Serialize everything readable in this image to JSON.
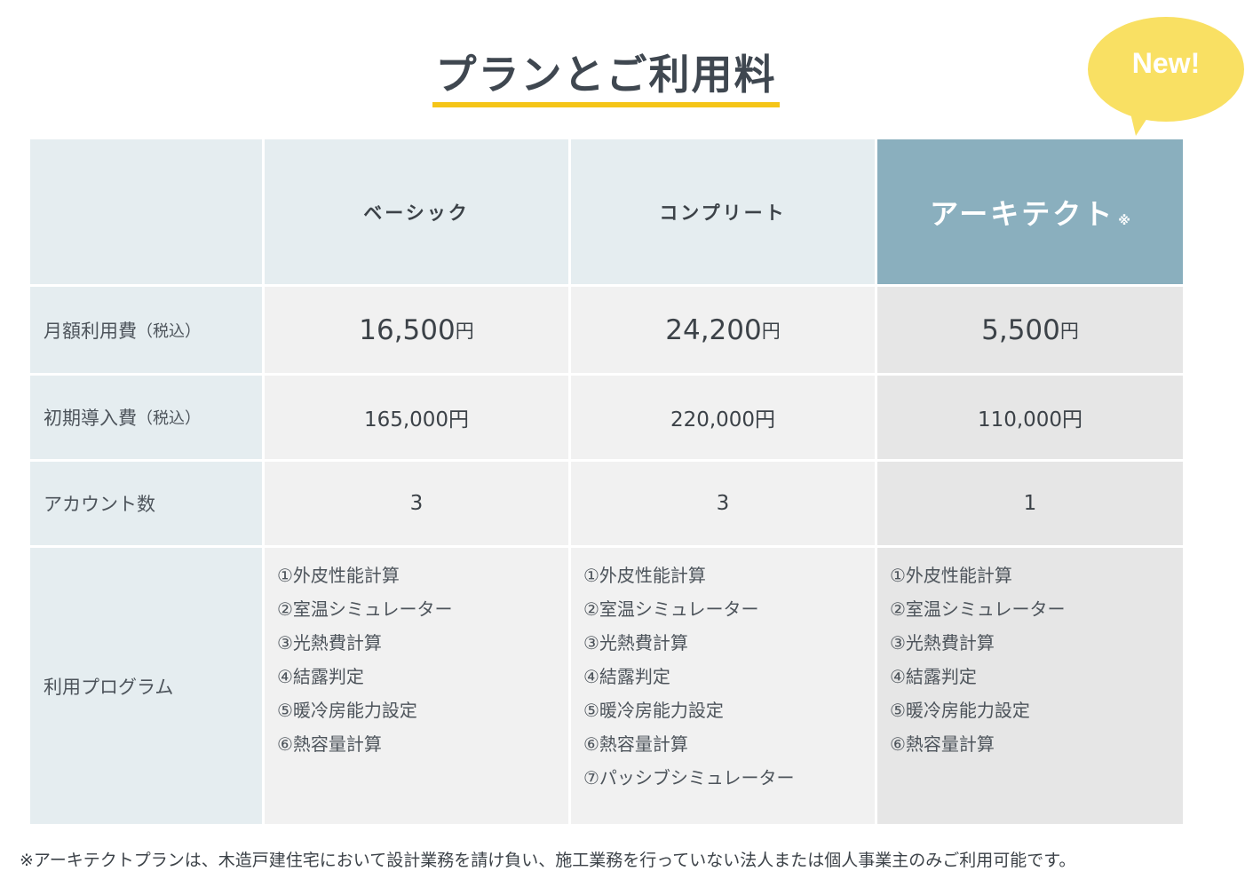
{
  "title": "プランとご利用料",
  "badge": "New!",
  "header": {
    "plans": [
      "ベーシック",
      "コンプリート",
      "アーキテクト"
    ],
    "architect_mark": "※"
  },
  "rows": {
    "monthly": {
      "label": "月額利用費",
      "tax": "（税込）",
      "values": [
        {
          "amount": "16,500",
          "unit": "円"
        },
        {
          "amount": "24,200",
          "unit": "円"
        },
        {
          "amount": "5,500",
          "unit": "円"
        }
      ]
    },
    "initial": {
      "label": "初期導入費",
      "tax": "（税込）",
      "values": [
        "165,000円",
        "220,000円",
        "110,000円"
      ]
    },
    "accounts": {
      "label": "アカウント数",
      "values": [
        "3",
        "3",
        "1"
      ]
    },
    "programs": {
      "label": "利用プログラム",
      "basic": [
        "①外皮性能計算",
        "②室温シミュレーター",
        "③光熱費計算",
        "④結露判定",
        "⑤暖冷房能力設定",
        "⑥熱容量計算"
      ],
      "complete": [
        "①外皮性能計算",
        "②室温シミュレーター",
        "③光熱費計算",
        "④結露判定",
        "⑤暖冷房能力設定",
        "⑥熱容量計算",
        "⑦パッシブシミュレーター"
      ],
      "architect": [
        "①外皮性能計算",
        "②室温シミュレーター",
        "③光熱費計算",
        "④結露判定",
        "⑤暖冷房能力設定",
        "⑥熱容量計算"
      ]
    }
  },
  "footnote": "※アーキテクトプランは、木造戸建住宅において設計業務を請け負い、施工業務を行っていない法人または個人事業主のみご利用可能です。",
  "colors": {
    "accent_underline": "#f5c518",
    "badge_bg": "#f9e063",
    "architect_header": "#8aafbe",
    "label_col_bg": "#e5edf0"
  }
}
